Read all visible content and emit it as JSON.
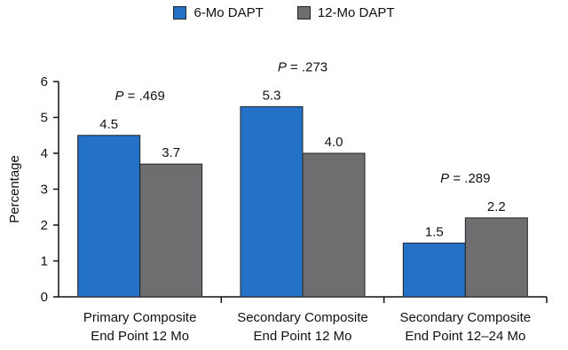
{
  "chart_data": {
    "type": "bar",
    "ylabel": "Percentage",
    "ylim": [
      0,
      6
    ],
    "yticks": [
      0,
      1,
      2,
      3,
      4,
      5,
      6
    ],
    "categories": [
      [
        "Primary Composite",
        "End Point 12 Mo"
      ],
      [
        "Secondary Composite",
        "End Point 12 Mo"
      ],
      [
        "Secondary Composite",
        "End Point 12–24 Mo"
      ]
    ],
    "series": [
      {
        "name": "6-Mo DAPT",
        "color": "#2472c8",
        "values": [
          4.5,
          5.3,
          1.5
        ],
        "labels": [
          "4.5",
          "5.3",
          "1.5"
        ]
      },
      {
        "name": "12-Mo DAPT",
        "color": "#6e6e70",
        "values": [
          3.7,
          4.0,
          2.2
        ],
        "labels": [
          "3.7",
          "4.0",
          "2.2"
        ]
      }
    ],
    "annotations": [
      {
        "prefix": "P",
        "text": " = .469"
      },
      {
        "prefix": "P",
        "text": " = .273"
      },
      {
        "prefix": "P",
        "text": " = .289"
      }
    ],
    "legend": "top-center",
    "grid": false
  }
}
